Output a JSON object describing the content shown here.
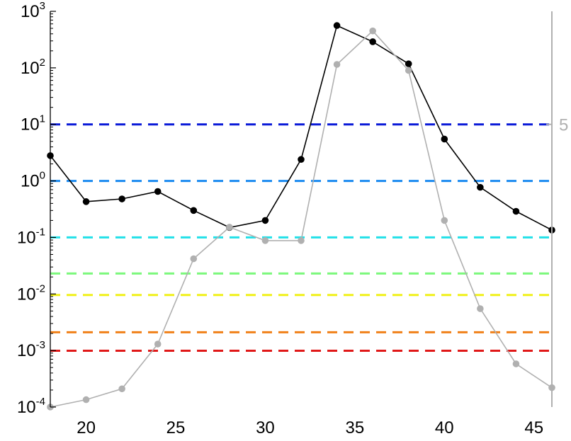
{
  "chart_data": {
    "type": "line",
    "title": "",
    "xlabel": "",
    "ylabel": "",
    "x_range": [
      18,
      46
    ],
    "x_ticks": [
      20,
      25,
      30,
      35,
      40,
      45
    ],
    "y_scale": "log",
    "y_range": [
      0.0001,
      1000
    ],
    "y_tick_labels": [
      {
        "base": "10",
        "exp": "-4",
        "value": 0.0001
      },
      {
        "base": "10",
        "exp": "-3",
        "value": 0.001
      },
      {
        "base": "10",
        "exp": "-2",
        "value": 0.01
      },
      {
        "base": "10",
        "exp": "-1",
        "value": 0.1
      },
      {
        "base": "10",
        "exp": "0",
        "value": 1
      },
      {
        "base": "10",
        "exp": "1",
        "value": 10
      },
      {
        "base": "10",
        "exp": "2",
        "value": 100
      },
      {
        "base": "10",
        "exp": "3",
        "value": 1000
      }
    ],
    "right_axis": {
      "tick_label": "5",
      "tick_at_left_value": 10,
      "color": "#b0b0b0"
    },
    "grid": false,
    "x": [
      18,
      20,
      22,
      24,
      26,
      28,
      30,
      32,
      34,
      36,
      38,
      40,
      42,
      44,
      46
    ],
    "series": [
      {
        "color": "#000000",
        "values": [
          2.8,
          0.43,
          0.48,
          0.65,
          0.3,
          0.15,
          0.2,
          2.4,
          560,
          290,
          118,
          5.5,
          0.77,
          0.29,
          0.135
        ]
      },
      {
        "color": "#b0b0b0",
        "values": [
          0.0001,
          0.000135,
          0.00021,
          0.0013,
          0.042,
          0.152,
          0.088,
          0.088,
          115,
          450,
          90,
          0.2,
          0.0055,
          0.00058,
          0.00022
        ]
      }
    ],
    "reference_lines": [
      {
        "y": 10,
        "color": "#0a1ad8"
      },
      {
        "y": 1,
        "color": "#1a8af0"
      },
      {
        "y": 0.1,
        "color": "#22e0e8"
      },
      {
        "y": 0.023,
        "color": "#7cf87c"
      },
      {
        "y": 0.0096,
        "color": "#f0f018"
      },
      {
        "y": 0.0021,
        "color": "#f08018"
      },
      {
        "y": 0.00099,
        "color": "#e01818"
      }
    ]
  }
}
